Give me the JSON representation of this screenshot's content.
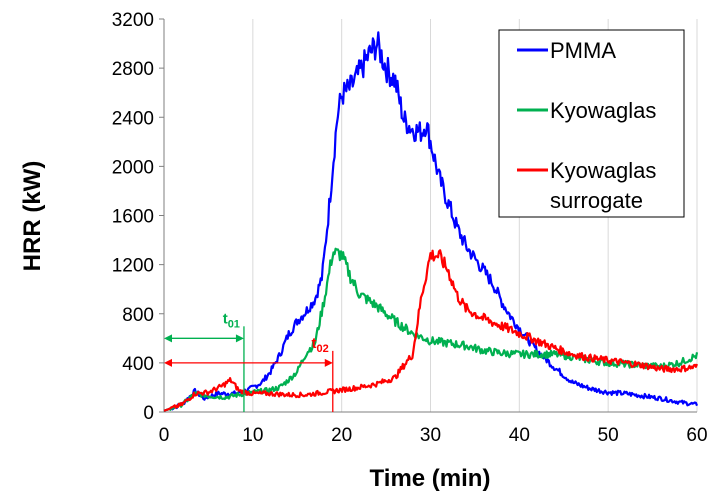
{
  "chart_data": {
    "type": "line",
    "xlabel": "Time (min)",
    "ylabel": "HRR (kW)",
    "xlim": [
      0,
      60
    ],
    "ylim": [
      0,
      3200
    ],
    "xticks": [
      0,
      10,
      20,
      30,
      40,
      50,
      60
    ],
    "yticks": [
      0,
      400,
      800,
      1200,
      1600,
      2000,
      2400,
      2800,
      3200
    ],
    "grid": {
      "vertical": true,
      "horizontal": false
    },
    "legend_position": "top-right",
    "series": [
      {
        "name": "PMMA",
        "color": "#0000ff",
        "points": [
          [
            0,
            10
          ],
          [
            2,
            60
          ],
          [
            3.5,
            170
          ],
          [
            4.5,
            110
          ],
          [
            6,
            150
          ],
          [
            8,
            150
          ],
          [
            9.5,
            180
          ],
          [
            11,
            240
          ],
          [
            12,
            330
          ],
          [
            13,
            460
          ],
          [
            14,
            630
          ],
          [
            15,
            740
          ],
          [
            16,
            820
          ],
          [
            17,
            920
          ],
          [
            17.8,
            1100
          ],
          [
            18.5,
            1600
          ],
          [
            19,
            2000
          ],
          [
            19.5,
            2400
          ],
          [
            20,
            2580
          ],
          [
            21,
            2640
          ],
          [
            22,
            2760
          ],
          [
            23,
            2900
          ],
          [
            24,
            3000
          ],
          [
            25,
            2800
          ],
          [
            26,
            2700
          ],
          [
            27,
            2380
          ],
          [
            28,
            2300
          ],
          [
            29,
            2280
          ],
          [
            29.5,
            2350
          ],
          [
            30,
            2200
          ],
          [
            31,
            1900
          ],
          [
            32,
            1700
          ],
          [
            33,
            1500
          ],
          [
            34,
            1350
          ],
          [
            35,
            1250
          ],
          [
            36,
            1150
          ],
          [
            37,
            1050
          ],
          [
            38,
            900
          ],
          [
            39,
            780
          ],
          [
            40,
            680
          ],
          [
            42,
            500
          ],
          [
            44,
            360
          ],
          [
            46,
            240
          ],
          [
            48,
            190
          ],
          [
            50,
            160
          ],
          [
            52,
            150
          ],
          [
            54,
            130
          ],
          [
            56,
            110
          ],
          [
            58,
            80
          ],
          [
            60,
            60
          ]
        ]
      },
      {
        "name": "Kyowaglas",
        "color": "#00b050",
        "points": [
          [
            0,
            10
          ],
          [
            2,
            60
          ],
          [
            3.5,
            150
          ],
          [
            5,
            130
          ],
          [
            7,
            120
          ],
          [
            9,
            150
          ],
          [
            11,
            170
          ],
          [
            12,
            180
          ],
          [
            13,
            200
          ],
          [
            14,
            260
          ],
          [
            15,
            330
          ],
          [
            16,
            480
          ],
          [
            17,
            560
          ],
          [
            18,
            900
          ],
          [
            19,
            1300
          ],
          [
            20,
            1280
          ],
          [
            21,
            1100
          ],
          [
            22,
            960
          ],
          [
            24,
            860
          ],
          [
            26,
            740
          ],
          [
            28,
            640
          ],
          [
            30,
            580
          ],
          [
            32,
            560
          ],
          [
            34,
            540
          ],
          [
            36,
            500
          ],
          [
            38,
            480
          ],
          [
            40,
            470
          ],
          [
            42,
            470
          ],
          [
            44,
            470
          ],
          [
            46,
            450
          ],
          [
            48,
            420
          ],
          [
            50,
            400
          ],
          [
            52,
            390
          ],
          [
            54,
            380
          ],
          [
            56,
            370
          ],
          [
            58,
            400
          ],
          [
            60,
            460
          ]
        ]
      },
      {
        "name": "Kyowaglas surrogate",
        "color": "#ff0000",
        "points": [
          [
            0,
            10
          ],
          [
            2,
            60
          ],
          [
            3.5,
            150
          ],
          [
            5,
            160
          ],
          [
            6.5,
            210
          ],
          [
            7.5,
            260
          ],
          [
            8.5,
            170
          ],
          [
            10,
            150
          ],
          [
            12,
            150
          ],
          [
            14,
            140
          ],
          [
            16,
            140
          ],
          [
            18,
            160
          ],
          [
            20,
            180
          ],
          [
            22,
            200
          ],
          [
            24,
            230
          ],
          [
            26,
            280
          ],
          [
            27,
            380
          ],
          [
            28,
            470
          ],
          [
            29,
            950
          ],
          [
            30,
            1280
          ],
          [
            31,
            1270
          ],
          [
            32,
            1150
          ],
          [
            33,
            950
          ],
          [
            34,
            840
          ],
          [
            36,
            760
          ],
          [
            38,
            700
          ],
          [
            40,
            640
          ],
          [
            42,
            580
          ],
          [
            44,
            520
          ],
          [
            46,
            470
          ],
          [
            48,
            440
          ],
          [
            50,
            420
          ],
          [
            52,
            400
          ],
          [
            54,
            380
          ],
          [
            56,
            350
          ],
          [
            58,
            350
          ],
          [
            60,
            370
          ]
        ]
      }
    ],
    "annotations": [
      {
        "text": "t01",
        "main": "t",
        "sub": "01",
        "color": "#00b050",
        "x_end": 9,
        "y": 600
      },
      {
        "text": "t02",
        "main": "t",
        "sub": "02",
        "color": "#ff0000",
        "x_end": 19,
        "y": 400
      }
    ]
  }
}
